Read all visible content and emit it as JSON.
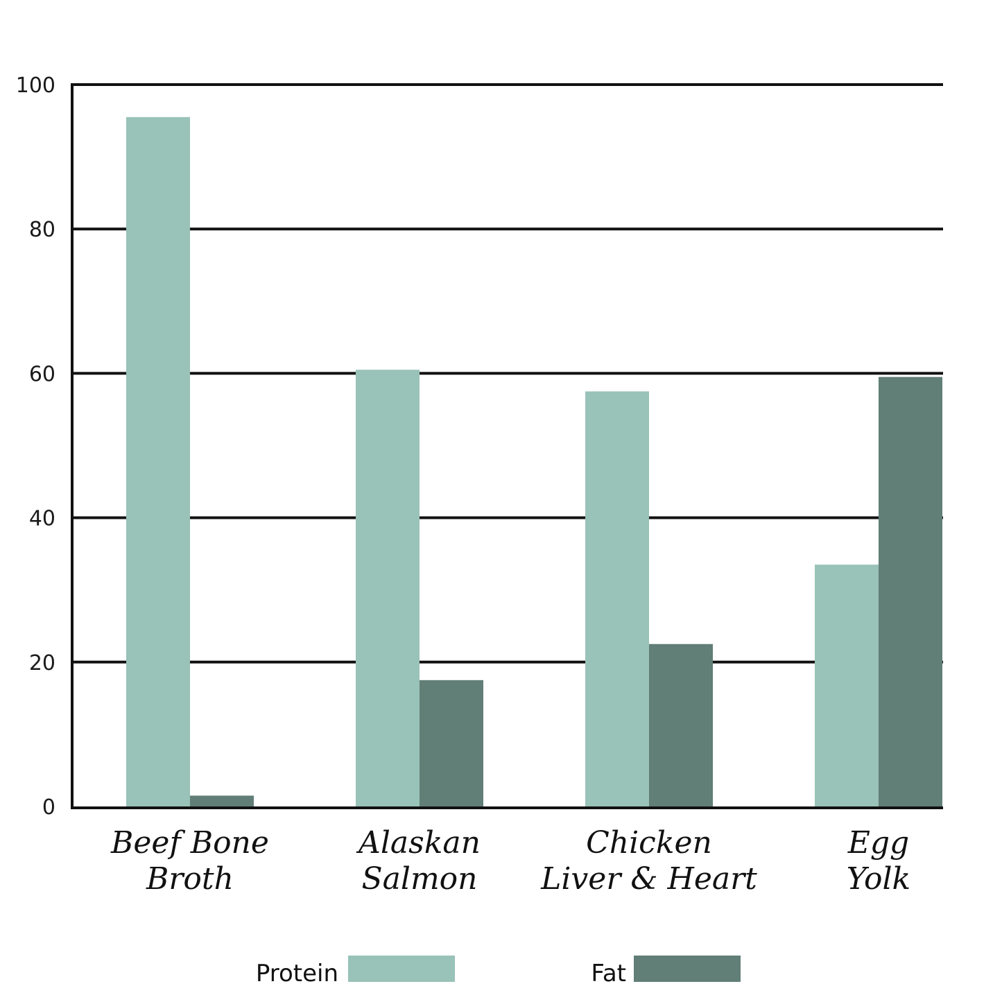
{
  "chart_data": {
    "type": "bar",
    "categories": [
      [
        "Beef Bone",
        "Broth"
      ],
      [
        "Alaskan",
        "Salmon"
      ],
      [
        "Chicken",
        "Liver & Heart"
      ],
      [
        "Egg",
        "Yolk"
      ]
    ],
    "series": [
      {
        "name": "Protein",
        "color": "#99c2b8",
        "values": [
          95.5,
          60.5,
          57.5,
          33.5
        ]
      },
      {
        "name": "Fat",
        "color": "#617e77",
        "values": [
          1.5,
          17.5,
          22.5,
          59.5
        ]
      }
    ],
    "ylim": [
      0,
      100
    ],
    "yticks": [
      "0",
      "20",
      "40",
      "60",
      "80",
      "100"
    ],
    "grid": true,
    "legend_position": "bottom-center"
  }
}
